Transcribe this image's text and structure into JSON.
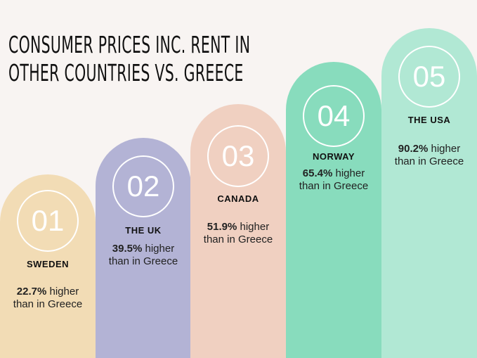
{
  "title": [
    "CONSUMER PRICES INC. RENT IN",
    "OTHER COUNTRIES VS. GREECE"
  ],
  "items": [
    {
      "number": "01",
      "country": "SWEDEN",
      "value": "22.7%",
      "suffix": "higher",
      "note": "than in Greece"
    },
    {
      "number": "02",
      "country": "THE UK",
      "value": "39.5%",
      "suffix": "higher",
      "note": "than in Greece"
    },
    {
      "number": "03",
      "country": "CANADA",
      "value": "51.9%",
      "suffix": "higher",
      "note": "than in Greece"
    },
    {
      "number": "04",
      "country": "NORWAY",
      "value": "65.4%",
      "suffix": "higher",
      "note": "than in Greece"
    },
    {
      "number": "05",
      "country": "THE USA",
      "value": "90.2%",
      "suffix": "higher",
      "note": "than in Greece"
    }
  ]
}
